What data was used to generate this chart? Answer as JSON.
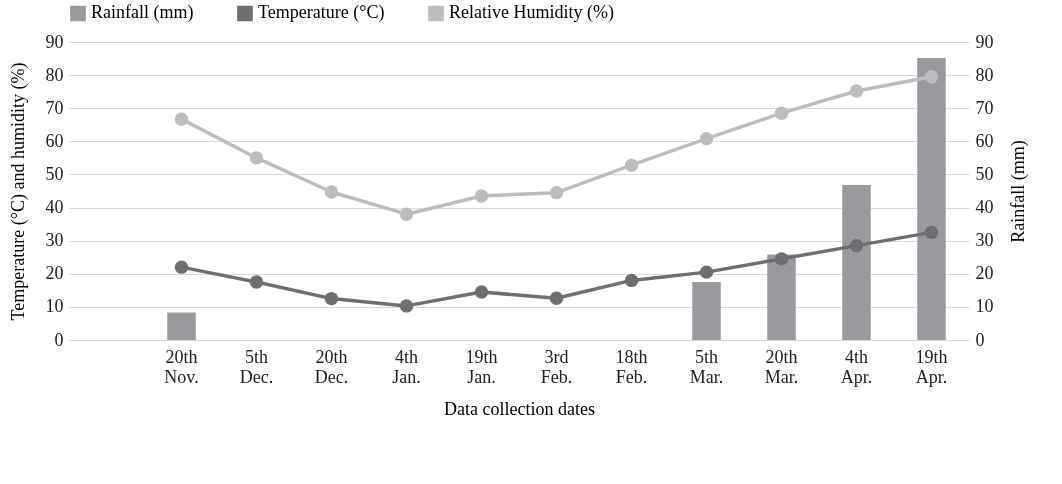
{
  "chart_data": {
    "type": "line",
    "xlabel": "Data collection dates",
    "ylabel": "Temperature (°C) and humidity (%)",
    "y2label": "Rainfall (mm)",
    "categories": [
      null,
      "20th Nov.",
      "5th Dec.",
      "20th Dec.",
      "4th Jan.",
      "19th Jan.",
      "3rd Feb.",
      "18th Feb.",
      "5th Mar.",
      "20th Mar.",
      "4th Apr.",
      "19th Apr."
    ],
    "series": [
      {
        "name": "Rainfall (mm)",
        "type": "bar",
        "axis": "y2",
        "color": "#999a9e",
        "values": [
          null,
          8.3,
          0,
          0,
          0,
          0,
          0,
          0,
          17.5,
          25.8,
          46.8,
          85.2
        ]
      },
      {
        "name": "Temperature (°C)",
        "color": "#6e6f73",
        "values": [
          null,
          22,
          17.5,
          12.5,
          10.3,
          14.5,
          12.6,
          18,
          20.5,
          24.5,
          28.5,
          32.5
        ]
      },
      {
        "name": "Relative Humidity (%)",
        "type": "line",
        "color": "#bcbdc0",
        "values": [
          null,
          66.7,
          55,
          44.7,
          38,
          43.5,
          44.5,
          52.8,
          60.8,
          68.5,
          75.2,
          79.5
        ]
      }
    ],
    "ylim": [
      0,
      90
    ],
    "yticks": [
      0,
      10,
      20,
      30,
      40,
      50,
      60,
      70,
      80,
      90
    ],
    "y2lim": [
      0,
      90
    ],
    "y2ticks": [
      0,
      10,
      20,
      30,
      40,
      50,
      60,
      70,
      80,
      90
    ],
    "grid": "y",
    "legend": "top",
    "marker": "circle",
    "line_style": "solid"
  }
}
